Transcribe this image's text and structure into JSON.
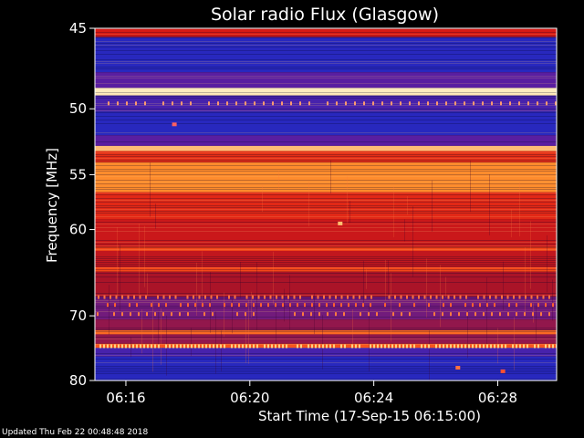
{
  "chart_data": {
    "type": "heatmap",
    "title": "Solar radio Flux (Glasgow)",
    "xlabel": "Start Time (17-Sep-15 06:15:00)",
    "ylabel": "Frequency [MHz]",
    "x_ticks": [
      "06:16",
      "06:20",
      "06:24",
      "06:28"
    ],
    "x_tick_minutes": [
      1,
      5,
      9,
      13
    ],
    "xlim_minutes": [
      0,
      14.9
    ],
    "y_ticks": [
      45,
      50,
      55,
      60,
      70,
      80
    ],
    "ylim": [
      45,
      80
    ],
    "y_scale": "reciprocal",
    "grid": false,
    "colors": {
      "background": "#000000",
      "low": "#1a1a8c",
      "mid_low": "#3030c8",
      "mid": "#c01818",
      "high": "#ff8a28",
      "peak": "#ffe6b0"
    },
    "frequency_bands": [
      {
        "f_start": 45.0,
        "f_end": 45.5,
        "level": 0.55
      },
      {
        "f_start": 45.5,
        "f_end": 47.6,
        "level": 0.22
      },
      {
        "f_start": 47.6,
        "f_end": 48.6,
        "level": 0.35
      },
      {
        "f_start": 48.6,
        "f_end": 49.1,
        "level": 1.0
      },
      {
        "f_start": 49.1,
        "f_end": 50.2,
        "level": 0.3
      },
      {
        "f_start": 50.2,
        "f_end": 51.9,
        "level": 0.22
      },
      {
        "f_start": 51.9,
        "f_end": 52.7,
        "level": 0.35
      },
      {
        "f_start": 52.7,
        "f_end": 53.1,
        "level": 0.9
      },
      {
        "f_start": 53.1,
        "f_end": 54.0,
        "level": 0.62
      },
      {
        "f_start": 54.0,
        "f_end": 56.5,
        "level": 0.8
      },
      {
        "f_start": 56.5,
        "f_end": 59.0,
        "level": 0.6
      },
      {
        "f_start": 59.0,
        "f_end": 61.8,
        "level": 0.52
      },
      {
        "f_start": 61.8,
        "f_end": 62.2,
        "level": 0.7
      },
      {
        "f_start": 62.2,
        "f_end": 64.0,
        "level": 0.5
      },
      {
        "f_start": 64.0,
        "f_end": 64.5,
        "level": 0.7
      },
      {
        "f_start": 64.5,
        "f_end": 67.5,
        "level": 0.45
      },
      {
        "f_start": 67.5,
        "f_end": 70.5,
        "level": 0.38
      },
      {
        "f_start": 70.5,
        "f_end": 72.0,
        "level": 0.42
      },
      {
        "f_start": 72.0,
        "f_end": 72.6,
        "level": 0.75
      },
      {
        "f_start": 72.6,
        "f_end": 74.0,
        "level": 0.42
      },
      {
        "f_start": 74.0,
        "f_end": 74.6,
        "level": 0.72
      },
      {
        "f_start": 74.6,
        "f_end": 76.0,
        "level": 0.3
      },
      {
        "f_start": 76.0,
        "f_end": 80.0,
        "level": 0.22
      }
    ]
  },
  "footer": {
    "updated": "Updated Thu Feb 22 00:48:48 2018"
  }
}
